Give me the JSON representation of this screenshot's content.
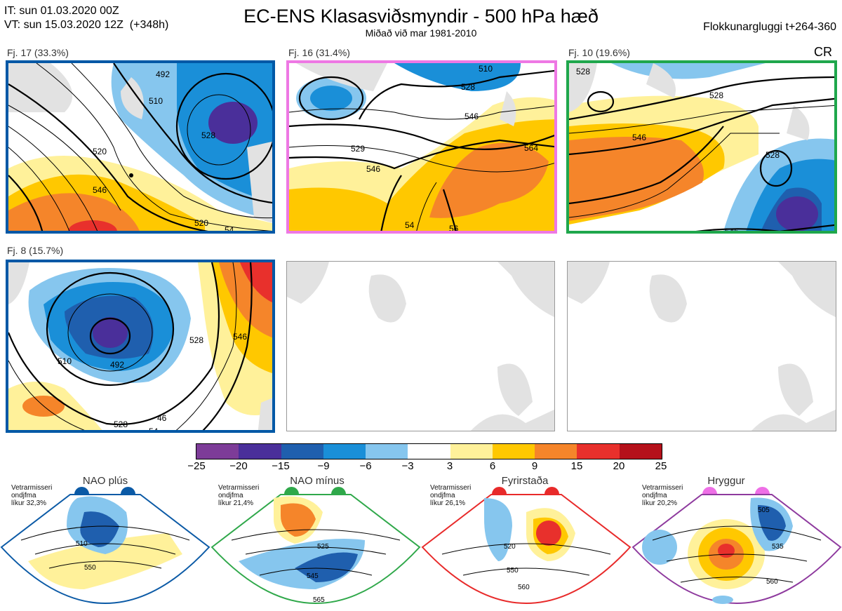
{
  "header": {
    "it_line": "IT: sun 01.03.2020 00Z",
    "vt_line": "VT: sun 15.03.2020 12Z  (+348h)",
    "title": "EC-ENS Klasasviðsmyndir - 500 hPa hæð",
    "subtitle": "Miðað við mar 1981-2010",
    "window": "Flokkunargluggi t+264-360",
    "cr": "CR"
  },
  "clusters": [
    {
      "label": "Fj. 17 (33.3%)",
      "border": "#0058a6",
      "contours": [
        "492",
        "510",
        "528",
        "520",
        "546",
        "520",
        "54"
      ]
    },
    {
      "label": "Fj. 16 (31.4%)",
      "border": "#ee78e4",
      "contours": [
        "510",
        "528",
        "546",
        "529",
        "546",
        "564",
        "54",
        "56"
      ]
    },
    {
      "label": "Fj. 10 (19.6%)",
      "border": "#1fa74c",
      "contours": [
        "528",
        "528",
        "546",
        "528",
        "546"
      ]
    },
    {
      "label": "Fj. 8 (15.7%)",
      "border": "#0058a6",
      "contours": [
        "510",
        "492",
        "528",
        "546",
        "528",
        "54",
        "46"
      ]
    }
  ],
  "colorbar": {
    "ticks": [
      "−25",
      "−20",
      "−15",
      "−9",
      "−6",
      "−3",
      "3",
      "6",
      "9",
      "15",
      "20",
      "25"
    ],
    "colors": [
      "#7d3c98",
      "#4a2f9a",
      "#1f5fae",
      "#1a8fd8",
      "#86c6ee",
      "#ffffff",
      "#fff19a",
      "#ffc800",
      "#f5852a",
      "#e8302c",
      "#b5111b"
    ]
  },
  "regimes": [
    {
      "name": "NAO plús",
      "note": "Vetrarmisseri\nondjfma\nlíkur 32,3%",
      "color": "#0b5aa6",
      "contours": [
        "510",
        "550"
      ]
    },
    {
      "name": "NAO mínus",
      "note": "Vetrarmisseri\nondjfma\nlíkur 21,4%",
      "color": "#2fa84a",
      "contours": [
        "525",
        "545",
        "565"
      ]
    },
    {
      "name": "Fyrirstaða",
      "note": "Vetrarmisseri\nondjfma\nlíkur 26,1%",
      "color": "#e82a2a",
      "contours": [
        "520",
        "550",
        "560"
      ]
    },
    {
      "name": "Hryggur",
      "note": "Vetrarmisseri\nondjfma\nlíkur 20,2%",
      "color": "#ee6fe6",
      "contours": [
        "505",
        "535",
        "560"
      ]
    }
  ]
}
